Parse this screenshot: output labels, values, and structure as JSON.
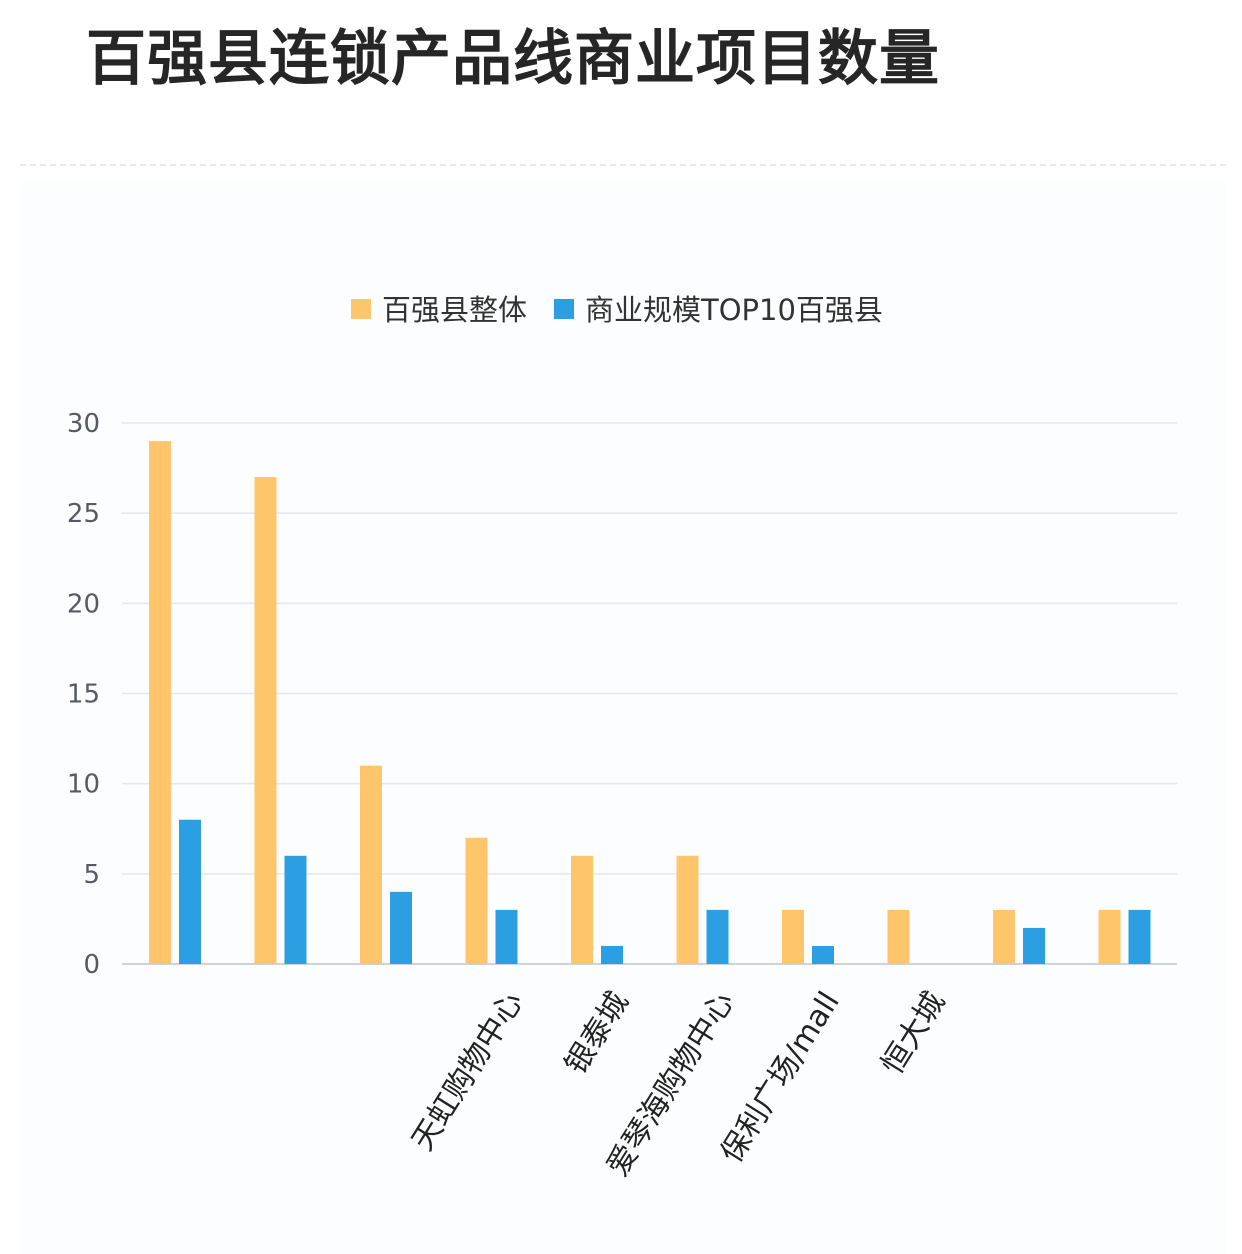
{
  "page": {
    "title": "百强县连锁产品线商业项目数量"
  },
  "chart_data": {
    "type": "bar",
    "title": "百强县连锁产品线商业项目数量",
    "categories": [
      "",
      "",
      "",
      "天虹购物中心",
      "银泰城",
      "爱琴海购物中心",
      "保利广场/mall",
      "恒大城",
      "",
      ""
    ],
    "series": [
      {
        "name": "百强县整体",
        "color": "#ffc56b",
        "values": [
          29,
          27,
          11,
          7,
          6,
          6,
          3,
          3,
          3,
          3
        ]
      },
      {
        "name": "商业规模TOP10百强县",
        "color": "#2c9fe2",
        "values": [
          8,
          6,
          4,
          3,
          1,
          3,
          1,
          0,
          2,
          3
        ]
      }
    ],
    "yticks": [
      "0",
      "5",
      "10",
      "15",
      "20",
      "25",
      "30"
    ],
    "ylim": [
      0,
      30
    ],
    "grid": true,
    "legend_position": "top-center"
  }
}
